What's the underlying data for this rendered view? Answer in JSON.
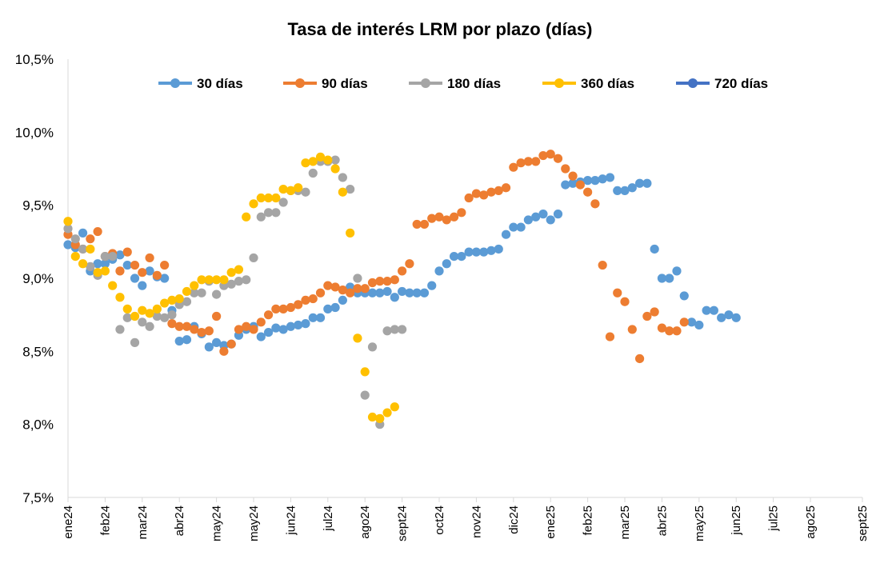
{
  "chart_data": {
    "type": "scatter",
    "title": "Tasa de interés LRM por plazo (días)",
    "xlabel": "",
    "ylabel": "",
    "ylim": [
      7.5,
      10.5
    ],
    "yticks": [
      "7,5%",
      "8,0%",
      "8,5%",
      "9,0%",
      "9,5%",
      "10,0%",
      "10,5%"
    ],
    "x_range": [
      0,
      107
    ],
    "xtick_labels": [
      {
        "label": "ene24",
        "x": 0
      },
      {
        "label": "feb24",
        "x": 5
      },
      {
        "label": "mar24",
        "x": 10
      },
      {
        "label": "abr24",
        "x": 15
      },
      {
        "label": "may24",
        "x": 20
      },
      {
        "label": "may24",
        "x": 25
      },
      {
        "label": "jun24",
        "x": 30
      },
      {
        "label": "jul24",
        "x": 35
      },
      {
        "label": "ago24",
        "x": 40
      },
      {
        "label": "sept24",
        "x": 45
      },
      {
        "label": "oct24",
        "x": 50
      },
      {
        "label": "nov24",
        "x": 55
      },
      {
        "label": "dic24",
        "x": 60
      },
      {
        "label": "ene25",
        "x": 65
      },
      {
        "label": "feb25",
        "x": 70
      },
      {
        "label": "mar25",
        "x": 75
      },
      {
        "label": "abr25",
        "x": 80
      },
      {
        "label": "may25",
        "x": 85
      },
      {
        "label": "jun25",
        "x": 90
      },
      {
        "label": "jul25",
        "x": 95
      },
      {
        "label": "ago25",
        "x": 100
      },
      {
        "label": "sept25",
        "x": 107
      }
    ],
    "legend": "top",
    "grid": false,
    "series": [
      {
        "name": "30 días",
        "color": "#5B9BD5",
        "points": [
          [
            0,
            9.23
          ],
          [
            1,
            9.21
          ],
          [
            2,
            9.31
          ],
          [
            3,
            9.05
          ],
          [
            4,
            9.1
          ],
          [
            5,
            9.1
          ],
          [
            6,
            9.13
          ],
          [
            7,
            9.16
          ],
          [
            8,
            9.09
          ],
          [
            9,
            9.0
          ],
          [
            10,
            8.95
          ],
          [
            11,
            9.05
          ],
          [
            12,
            9.01
          ],
          [
            13,
            9.0
          ],
          [
            14,
            8.78
          ],
          [
            15,
            8.57
          ],
          [
            16,
            8.58
          ],
          [
            17,
            8.67
          ],
          [
            18,
            8.62
          ],
          [
            19,
            8.53
          ],
          [
            20,
            8.56
          ],
          [
            21,
            8.54
          ],
          [
            22,
            8.55
          ],
          [
            23,
            8.61
          ],
          [
            24,
            8.65
          ],
          [
            25,
            8.67
          ],
          [
            26,
            8.6
          ],
          [
            27,
            8.63
          ],
          [
            28,
            8.66
          ],
          [
            29,
            8.65
          ],
          [
            30,
            8.67
          ],
          [
            31,
            8.68
          ],
          [
            32,
            8.69
          ],
          [
            33,
            8.73
          ],
          [
            34,
            8.73
          ],
          [
            35,
            8.79
          ],
          [
            36,
            8.8
          ],
          [
            37,
            8.85
          ],
          [
            38,
            8.94
          ],
          [
            39,
            8.9
          ],
          [
            40,
            8.9
          ],
          [
            41,
            8.9
          ],
          [
            42,
            8.9
          ],
          [
            43,
            8.91
          ],
          [
            44,
            8.87
          ],
          [
            45,
            8.91
          ],
          [
            46,
            8.9
          ],
          [
            47,
            8.9
          ],
          [
            48,
            8.9
          ],
          [
            49,
            8.95
          ],
          [
            50,
            9.05
          ],
          [
            51,
            9.1
          ],
          [
            52,
            9.15
          ],
          [
            53,
            9.15
          ],
          [
            54,
            9.18
          ],
          [
            55,
            9.18
          ],
          [
            56,
            9.18
          ],
          [
            57,
            9.19
          ],
          [
            58,
            9.2
          ],
          [
            59,
            9.3
          ],
          [
            60,
            9.35
          ],
          [
            61,
            9.35
          ],
          [
            62,
            9.4
          ],
          [
            63,
            9.42
          ],
          [
            64,
            9.44
          ],
          [
            65,
            9.4
          ],
          [
            66,
            9.44
          ],
          [
            67,
            9.64
          ],
          [
            68,
            9.65
          ],
          [
            69,
            9.66
          ],
          [
            70,
            9.67
          ],
          [
            71,
            9.67
          ],
          [
            72,
            9.68
          ],
          [
            73,
            9.69
          ],
          [
            74,
            9.6
          ],
          [
            75,
            9.6
          ],
          [
            76,
            9.62
          ],
          [
            77,
            9.65
          ],
          [
            78,
            9.65
          ],
          [
            79,
            9.2
          ],
          [
            80,
            9.0
          ],
          [
            81,
            9.0
          ],
          [
            82,
            9.05
          ],
          [
            83,
            8.88
          ],
          [
            84,
            8.7
          ],
          [
            85,
            8.68
          ],
          [
            86,
            8.78
          ],
          [
            87,
            8.78
          ],
          [
            88,
            8.73
          ],
          [
            89,
            8.75
          ],
          [
            90,
            8.73
          ]
        ]
      },
      {
        "name": "90 días",
        "color": "#ED7D31",
        "points": [
          [
            0,
            9.3
          ],
          [
            1,
            9.23
          ],
          [
            2,
            9.2
          ],
          [
            3,
            9.27
          ],
          [
            4,
            9.32
          ],
          [
            5,
            9.15
          ],
          [
            6,
            9.17
          ],
          [
            7,
            9.05
          ],
          [
            8,
            9.18
          ],
          [
            9,
            9.09
          ],
          [
            10,
            9.04
          ],
          [
            11,
            9.14
          ],
          [
            12,
            9.02
          ],
          [
            13,
            9.09
          ],
          [
            14,
            8.69
          ],
          [
            15,
            8.67
          ],
          [
            16,
            8.67
          ],
          [
            17,
            8.65
          ],
          [
            18,
            8.63
          ],
          [
            19,
            8.64
          ],
          [
            20,
            8.74
          ],
          [
            21,
            8.5
          ],
          [
            22,
            8.55
          ],
          [
            23,
            8.65
          ],
          [
            24,
            8.67
          ],
          [
            25,
            8.65
          ],
          [
            26,
            8.7
          ],
          [
            27,
            8.75
          ],
          [
            28,
            8.79
          ],
          [
            29,
            8.79
          ],
          [
            30,
            8.8
          ],
          [
            31,
            8.82
          ],
          [
            32,
            8.85
          ],
          [
            33,
            8.86
          ],
          [
            34,
            8.9
          ],
          [
            35,
            8.95
          ],
          [
            36,
            8.94
          ],
          [
            37,
            8.92
          ],
          [
            38,
            8.9
          ],
          [
            39,
            8.93
          ],
          [
            40,
            8.93
          ],
          [
            41,
            8.97
          ],
          [
            42,
            8.98
          ],
          [
            43,
            8.98
          ],
          [
            44,
            8.99
          ],
          [
            45,
            9.05
          ],
          [
            46,
            9.1
          ],
          [
            47,
            9.37
          ],
          [
            48,
            9.37
          ],
          [
            49,
            9.41
          ],
          [
            50,
            9.42
          ],
          [
            51,
            9.4
          ],
          [
            52,
            9.42
          ],
          [
            53,
            9.45
          ],
          [
            54,
            9.55
          ],
          [
            55,
            9.58
          ],
          [
            56,
            9.57
          ],
          [
            57,
            9.59
          ],
          [
            58,
            9.6
          ],
          [
            59,
            9.62
          ],
          [
            60,
            9.76
          ],
          [
            61,
            9.79
          ],
          [
            62,
            9.8
          ],
          [
            63,
            9.8
          ],
          [
            64,
            9.84
          ],
          [
            65,
            9.85
          ],
          [
            66,
            9.82
          ],
          [
            67,
            9.75
          ],
          [
            68,
            9.7
          ],
          [
            69,
            9.64
          ],
          [
            70,
            9.59
          ],
          [
            71,
            9.51
          ],
          [
            72,
            9.09
          ],
          [
            73,
            8.6
          ],
          [
            74,
            8.9
          ],
          [
            75,
            8.84
          ],
          [
            76,
            8.65
          ],
          [
            77,
            8.45
          ],
          [
            78,
            8.74
          ],
          [
            79,
            8.77
          ],
          [
            80,
            8.66
          ],
          [
            81,
            8.64
          ],
          [
            82,
            8.64
          ],
          [
            83,
            8.7
          ]
        ]
      },
      {
        "name": "180 días",
        "color": "#A5A5A5",
        "points": [
          [
            0,
            9.34
          ],
          [
            1,
            9.27
          ],
          [
            2,
            9.2
          ],
          [
            3,
            9.08
          ],
          [
            4,
            9.02
          ],
          [
            5,
            9.15
          ],
          [
            6,
            9.15
          ],
          [
            7,
            8.65
          ],
          [
            8,
            8.73
          ],
          [
            9,
            8.56
          ],
          [
            10,
            8.7
          ],
          [
            11,
            8.67
          ],
          [
            12,
            8.74
          ],
          [
            13,
            8.73
          ],
          [
            14,
            8.75
          ],
          [
            15,
            8.82
          ],
          [
            16,
            8.84
          ],
          [
            17,
            8.9
          ],
          [
            18,
            8.9
          ],
          [
            19,
            8.98
          ],
          [
            20,
            8.89
          ],
          [
            21,
            8.95
          ],
          [
            22,
            8.96
          ],
          [
            23,
            8.98
          ],
          [
            24,
            8.99
          ],
          [
            25,
            9.14
          ],
          [
            26,
            9.42
          ],
          [
            27,
            9.45
          ],
          [
            28,
            9.45
          ],
          [
            29,
            9.52
          ],
          [
            30,
            9.6
          ],
          [
            31,
            9.6
          ],
          [
            32,
            9.59
          ],
          [
            33,
            9.72
          ],
          [
            34,
            9.8
          ],
          [
            35,
            9.8
          ],
          [
            36,
            9.81
          ],
          [
            37,
            9.69
          ],
          [
            38,
            9.61
          ],
          [
            39,
            9.0
          ],
          [
            40,
            8.2
          ],
          [
            41,
            8.53
          ],
          [
            42,
            8.0
          ],
          [
            43,
            8.64
          ],
          [
            44,
            8.65
          ],
          [
            45,
            8.65
          ]
        ]
      },
      {
        "name": "360 días",
        "color": "#FFC000",
        "points": [
          [
            0,
            9.39
          ],
          [
            1,
            9.15
          ],
          [
            2,
            9.1
          ],
          [
            3,
            9.2
          ],
          [
            4,
            9.04
          ],
          [
            5,
            9.05
          ],
          [
            6,
            8.95
          ],
          [
            7,
            8.87
          ],
          [
            8,
            8.79
          ],
          [
            9,
            8.74
          ],
          [
            10,
            8.78
          ],
          [
            11,
            8.76
          ],
          [
            12,
            8.79
          ],
          [
            13,
            8.83
          ],
          [
            14,
            8.85
          ],
          [
            15,
            8.86
          ],
          [
            16,
            8.91
          ],
          [
            17,
            8.95
          ],
          [
            18,
            8.99
          ],
          [
            19,
            8.99
          ],
          [
            20,
            8.99
          ],
          [
            21,
            8.99
          ],
          [
            22,
            9.04
          ],
          [
            23,
            9.06
          ],
          [
            24,
            9.42
          ],
          [
            25,
            9.51
          ],
          [
            26,
            9.55
          ],
          [
            27,
            9.55
          ],
          [
            28,
            9.55
          ],
          [
            29,
            9.61
          ],
          [
            30,
            9.6
          ],
          [
            31,
            9.62
          ],
          [
            32,
            9.79
          ],
          [
            33,
            9.8
          ],
          [
            34,
            9.83
          ],
          [
            35,
            9.81
          ],
          [
            36,
            9.75
          ],
          [
            37,
            9.59
          ],
          [
            38,
            9.31
          ],
          [
            39,
            8.59
          ],
          [
            40,
            8.36
          ],
          [
            41,
            8.05
          ],
          [
            42,
            8.04
          ],
          [
            43,
            8.08
          ],
          [
            44,
            8.12
          ]
        ]
      },
      {
        "name": "720 días",
        "color": "#4472C4",
        "points": []
      }
    ]
  }
}
